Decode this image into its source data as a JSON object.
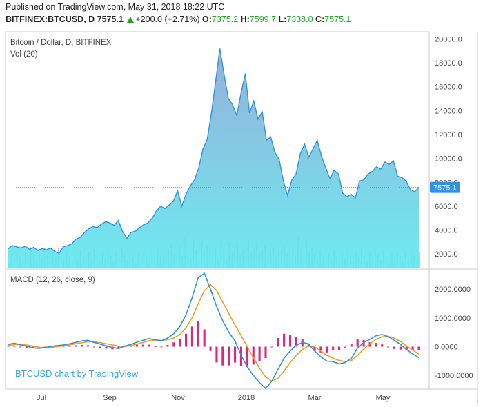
{
  "header": {
    "published": "Published on TradingView.com, May 31, 2018 18:22 UTC",
    "symbol": "BITFINEX:BTCUSD, D",
    "last": "7575.1",
    "change": "+200.0 (+2.71%)",
    "o_label": "O:",
    "o_value": "7375.2",
    "h_label": "H:",
    "h_value": "7599.7",
    "l_label": "L:",
    "l_value": "7338.0",
    "c_label": "C:",
    "c_value": "7575.1"
  },
  "price_panel": {
    "title": "Bitcoin / Dollar, D, BITFINEX",
    "volume_label": "Vol (20)",
    "last_price_tag": "7575.1"
  },
  "macd_panel": {
    "title": "MACD (12, 26, close, 9)",
    "watermark": "BTCUSD chart by TradingView"
  },
  "colors": {
    "price_line": "#2e93e0",
    "area_top": "#8aa7d4",
    "area_bottom": "#5ee8ef",
    "macd_line": "#2e93e0",
    "signal_line": "#f59a23",
    "histogram": "#e0257a",
    "volume": "#8aa0a6",
    "ticker_green": "#26a626"
  },
  "chart_data": [
    {
      "type": "area",
      "title": "Bitcoin / Dollar, D, BITFINEX",
      "x_ticks": [
        "Jul",
        "Sep",
        "Nov",
        "2018",
        "Mar",
        "May"
      ],
      "y_ticks": [
        "2000.0",
        "4000.0",
        "6000.0",
        "8000.0",
        "10000.0",
        "12000.0",
        "14000.0",
        "16000.0",
        "18000.0",
        "20000.0"
      ],
      "ylim": [
        800,
        20600
      ],
      "last_value": 7575.1,
      "series": [
        {
          "values": [
            2450,
            2700,
            2600,
            2500,
            2650,
            2400,
            2550,
            2300,
            2450,
            2350,
            2500,
            2200,
            2050,
            2600,
            2700,
            2850,
            3250,
            3400,
            3800,
            4100,
            4300,
            4200,
            4500,
            4700,
            4600,
            4400,
            4800,
            3900,
            3300,
            3800,
            3900,
            4200,
            4450,
            4600,
            5000,
            5600,
            6000,
            5800,
            6100,
            6400,
            7300,
            6000,
            7000,
            7700,
            8200,
            9200,
            10800,
            11600,
            13800,
            16500,
            19200,
            17000,
            15000,
            14500,
            13600,
            15500,
            17100,
            13800,
            14800,
            13300,
            13900,
            11500,
            11800,
            10500,
            9900,
            8100,
            6900,
            8200,
            8700,
            10400,
            11200,
            10100,
            10800,
            11500,
            10200,
            9200,
            8300,
            9000,
            8700,
            7100,
            6800,
            7000,
            6700,
            8100,
            8200,
            8700,
            8900,
            9300,
            9100,
            9700,
            9500,
            9800,
            8500,
            8400,
            8100,
            7400,
            7200,
            7575.1
          ]
        }
      ]
    },
    {
      "type": "line",
      "title": "MACD (12, 26, close, 9)",
      "x_ticks": [
        "Jul",
        "Sep",
        "Nov",
        "2018",
        "Mar",
        "May"
      ],
      "y_ticks": [
        "-1000.0000",
        "0.0000",
        "1000.0000",
        "2000.0000"
      ],
      "ylim": [
        -1450,
        2650
      ],
      "series": [
        {
          "name": "MACD",
          "values": [
            80,
            120,
            60,
            20,
            -40,
            -60,
            -30,
            10,
            40,
            60,
            100,
            150,
            200,
            220,
            150,
            90,
            30,
            -30,
            -60,
            20,
            80,
            160,
            220,
            280,
            240,
            200,
            300,
            450,
            700,
            1100,
            1700,
            2400,
            2550,
            2000,
            1400,
            900,
            500,
            200,
            -300,
            -700,
            -1000,
            -1250,
            -1450,
            -1200,
            -800,
            -400,
            -150,
            50,
            150,
            100,
            -150,
            -350,
            -500,
            -520,
            -600,
            -550,
            -400,
            -50,
            150,
            250,
            380,
            420,
            350,
            220,
            80,
            -100,
            -250,
            -380
          ]
        },
        {
          "name": "Signal",
          "values": [
            40,
            80,
            80,
            60,
            20,
            -20,
            -30,
            -20,
            0,
            30,
            60,
            100,
            140,
            170,
            170,
            140,
            100,
            60,
            20,
            10,
            40,
            90,
            150,
            210,
            230,
            220,
            240,
            300,
            420,
            650,
            1000,
            1500,
            1950,
            2150,
            1950,
            1550,
            1150,
            750,
            380,
            0,
            -380,
            -750,
            -1050,
            -1200,
            -1100,
            -850,
            -550,
            -300,
            -100,
            20,
            0,
            -150,
            -300,
            -400,
            -480,
            -520,
            -480,
            -300,
            -80,
            100,
            250,
            340,
            360,
            300,
            180,
            30,
            -120,
            -260
          ]
        },
        {
          "name": "Histogram",
          "values": [
            40,
            40,
            -20,
            -40,
            -60,
            -40,
            0,
            30,
            40,
            30,
            40,
            50,
            60,
            50,
            -20,
            -50,
            -70,
            -90,
            -80,
            10,
            40,
            70,
            70,
            70,
            10,
            -20,
            60,
            150,
            280,
            450,
            700,
            900,
            600,
            -150,
            -550,
            -650,
            -650,
            -550,
            -680,
            -700,
            -620,
            -500,
            -400,
            0,
            300,
            450,
            400,
            350,
            250,
            80,
            -150,
            -200,
            -200,
            -120,
            -120,
            -30,
            80,
            250,
            230,
            150,
            130,
            80,
            -10,
            -80,
            -100,
            -130,
            -130,
            -120
          ]
        }
      ]
    }
  ]
}
